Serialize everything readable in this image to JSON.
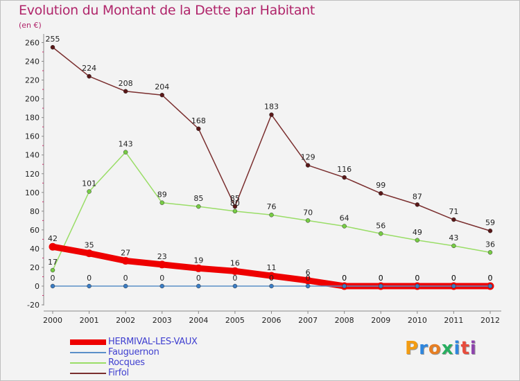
{
  "title": "Evolution du Montant de la Dette par Habitant",
  "unit": "(en €)",
  "logo": {
    "text": "Proxiti",
    "colors": [
      "#f39c12",
      "#2e86de",
      "#e67e22",
      "#27ae60",
      "#2e86de",
      "#e74c3c",
      "#8e44ad"
    ]
  },
  "chart_data": {
    "type": "line",
    "x": [
      "2000",
      "2001",
      "2002",
      "2003",
      "2004",
      "2005",
      "2006",
      "2007",
      "2008",
      "2009",
      "2010",
      "2011",
      "2012"
    ],
    "yticks": [
      -20,
      0,
      20,
      40,
      60,
      80,
      100,
      120,
      140,
      160,
      180,
      200,
      220,
      240,
      260
    ],
    "ylim": [
      -20,
      265
    ],
    "grid": false,
    "legend_position": "bottom-left",
    "series": [
      {
        "name": "HERMIVAL-LES-VAUX",
        "color": "#ee0000",
        "point_color": "#ee0000",
        "width": 9,
        "values": [
          42,
          35,
          27,
          23,
          19,
          16,
          11,
          6,
          0,
          0,
          0,
          0,
          0
        ],
        "labels": [
          "42",
          "35",
          "27",
          "23",
          "19",
          "16",
          "11",
          "6",
          "0",
          "0",
          "0",
          "0",
          "0"
        ]
      },
      {
        "name": "Fauguernon",
        "color": "#5a8fc8",
        "point_color": "#3a7cc4",
        "width": 1.5,
        "values": [
          0,
          0,
          0,
          0,
          0,
          0,
          0,
          0,
          0,
          0,
          0,
          0,
          0
        ],
        "labels": [
          "0",
          "0",
          "0",
          "0",
          "0",
          "0",
          "0",
          "0",
          "0",
          "0",
          "0",
          "0",
          "0"
        ]
      },
      {
        "name": "Rocques",
        "color": "#99dd66",
        "point_color": "#77cc44",
        "width": 1.5,
        "values": [
          17,
          101,
          143,
          89,
          85,
          80,
          76,
          70,
          64,
          56,
          49,
          43,
          36
        ],
        "labels": [
          "17",
          "101",
          "143",
          "89",
          "85",
          "80",
          "76",
          "70",
          "64",
          "56",
          "49",
          "43",
          "36"
        ]
      },
      {
        "name": "Firfol",
        "color": "#7a2e2e",
        "point_color": "#5a1818",
        "width": 1.5,
        "values": [
          255,
          224,
          208,
          204,
          168,
          85,
          183,
          129,
          116,
          99,
          87,
          71,
          59
        ],
        "labels": [
          "255",
          "224",
          "208",
          "204",
          "168",
          "85",
          "183",
          "129",
          "116",
          "99",
          "87",
          "71",
          "59"
        ]
      }
    ]
  }
}
